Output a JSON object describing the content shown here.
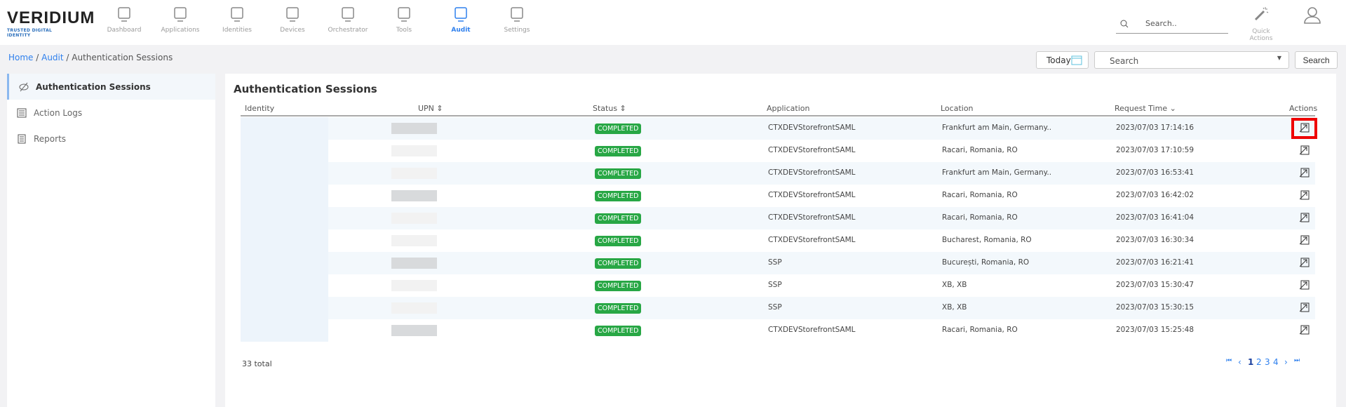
{
  "brand": {
    "name": "VERIDIUM",
    "tagline": "TRUSTED DIGITAL IDENTITY"
  },
  "nav": [
    {
      "label": "Dashboard",
      "icon": "monitor-icon"
    },
    {
      "label": "Applications",
      "icon": "apps-icon"
    },
    {
      "label": "Identities",
      "icon": "users-icon"
    },
    {
      "label": "Devices",
      "icon": "devices-icon"
    },
    {
      "label": "Orchestrator",
      "icon": "flow-icon"
    },
    {
      "label": "Tools",
      "icon": "tools-icon"
    },
    {
      "label": "Audit",
      "icon": "audit-icon",
      "active": true
    },
    {
      "label": "Settings",
      "icon": "gear-icon"
    }
  ],
  "top_search": {
    "placeholder": "Search.."
  },
  "quick_actions": "Quick Actions",
  "breadcrumb": {
    "home": "Home",
    "audit": "Audit",
    "current": "Authentication Sessions"
  },
  "toolbar": {
    "today": "Today",
    "search_select": "Search",
    "search_button": "Search"
  },
  "sidebar": [
    {
      "label": "Authentication Sessions",
      "active": true
    },
    {
      "label": "Action Logs"
    },
    {
      "label": "Reports"
    }
  ],
  "table": {
    "title": "Authentication Sessions",
    "columns": [
      "Identity",
      "UPN",
      "Status",
      "Application",
      "Location",
      "Request Time",
      "Actions"
    ],
    "rows": [
      {
        "status": "COMPLETED",
        "application": "CTXDEVStorefrontSAML",
        "location": "Frankfurt am Main, Germany..",
        "time": "2023/07/03 17:14:16"
      },
      {
        "status": "COMPLETED",
        "application": "CTXDEVStorefrontSAML",
        "location": "Racari, Romania, RO",
        "time": "2023/07/03 17:10:59"
      },
      {
        "status": "COMPLETED",
        "application": "CTXDEVStorefrontSAML",
        "location": "Frankfurt am Main, Germany..",
        "time": "2023/07/03 16:53:41"
      },
      {
        "status": "COMPLETED",
        "application": "CTXDEVStorefrontSAML",
        "location": "Racari, Romania, RO",
        "time": "2023/07/03 16:42:02"
      },
      {
        "status": "COMPLETED",
        "application": "CTXDEVStorefrontSAML",
        "location": "Racari, Romania, RO",
        "time": "2023/07/03 16:41:04"
      },
      {
        "status": "COMPLETED",
        "application": "CTXDEVStorefrontSAML",
        "location": "Bucharest, Romania, RO",
        "time": "2023/07/03 16:30:34"
      },
      {
        "status": "COMPLETED",
        "application": "SSP",
        "location": "București, Romania, RO",
        "time": "2023/07/03 16:21:41"
      },
      {
        "status": "COMPLETED",
        "application": "SSP",
        "location": "XB, XB",
        "time": "2023/07/03 15:30:47"
      },
      {
        "status": "COMPLETED",
        "application": "SSP",
        "location": "XB, XB",
        "time": "2023/07/03 15:30:15"
      },
      {
        "status": "COMPLETED",
        "application": "CTXDEVStorefrontSAML",
        "location": "Racari, Romania, RO",
        "time": "2023/07/03 15:25:48"
      }
    ],
    "total": "33 total",
    "pages": [
      "1",
      "2",
      "3",
      "4"
    ],
    "current_page": "1"
  },
  "colors": {
    "accent": "#2f80ed",
    "completed": "#28a745",
    "highlight": "#e00000"
  }
}
